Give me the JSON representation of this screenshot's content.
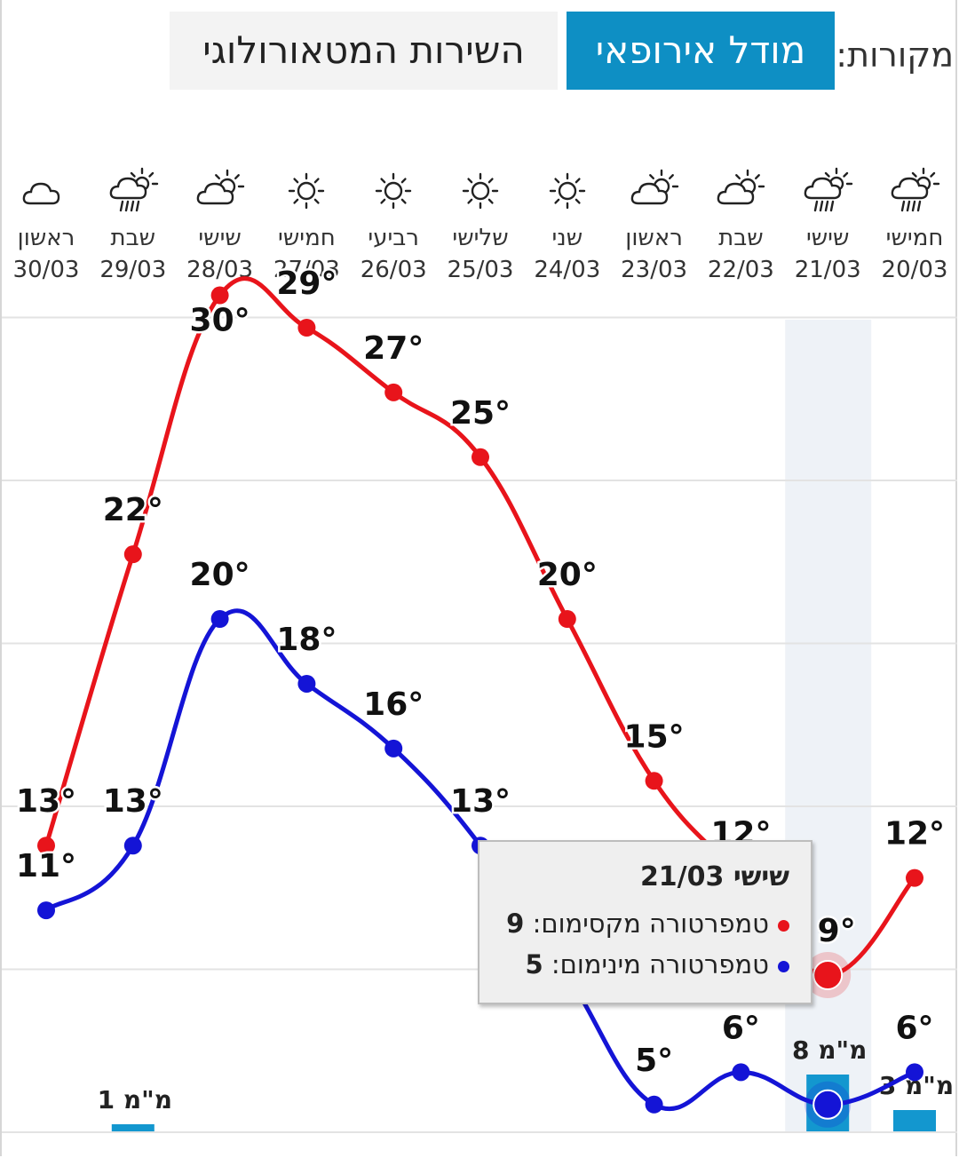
{
  "sources": {
    "label": "מקורות:",
    "european_model": "מודל אירופאי",
    "meteorological_service": "השירות המטאורולוגי"
  },
  "days": [
    {
      "name": "חמישי",
      "date": "20/03",
      "icon": "rain-sun-cloud-icon"
    },
    {
      "name": "שישי",
      "date": "21/03",
      "icon": "rain-sun-cloud-icon"
    },
    {
      "name": "שבת",
      "date": "22/03",
      "icon": "partly-cloudy-icon"
    },
    {
      "name": "ראשון",
      "date": "23/03",
      "icon": "partly-cloudy-icon"
    },
    {
      "name": "שני",
      "date": "24/03",
      "icon": "sun-icon"
    },
    {
      "name": "שלישי",
      "date": "25/03",
      "icon": "sun-icon"
    },
    {
      "name": "רביעי",
      "date": "26/03",
      "icon": "sun-icon"
    },
    {
      "name": "חמישי",
      "date": "27/03",
      "icon": "sun-icon"
    },
    {
      "name": "שישי",
      "date": "28/03",
      "icon": "partly-cloudy-icon"
    },
    {
      "name": "שבת",
      "date": "29/03",
      "icon": "rain-sun-cloud-icon"
    },
    {
      "name": "ראשון",
      "date": "30/03",
      "icon": "cloud-icon"
    }
  ],
  "chart_data": {
    "type": "line",
    "categories": [
      "20/03",
      "21/03",
      "22/03",
      "23/03",
      "24/03",
      "25/03",
      "26/03",
      "27/03",
      "28/03",
      "29/03",
      "30/03"
    ],
    "series": [
      {
        "name": "טמפרטורה מקסימום",
        "color": "#e8141b",
        "values": [
          12,
          9,
          12,
          15,
          20,
          25,
          27,
          29,
          30,
          22,
          13
        ]
      },
      {
        "name": "טמפרטורה מינימום",
        "color": "#1414d6",
        "values": [
          6,
          5,
          6,
          5,
          9,
          13,
          16,
          18,
          20,
          13,
          11
        ]
      }
    ],
    "value_labels": {
      "max": [
        "12°",
        "9°",
        "12°",
        "15°",
        "20°",
        "25°",
        "27°",
        "29°",
        "30°",
        "22°",
        "13°"
      ],
      "min": [
        "6°",
        "",
        "6°",
        "5°",
        "",
        "13°",
        "16°",
        "18°",
        "20°",
        "13°",
        "11°"
      ]
    },
    "precipitation": [
      {
        "date": "20/03",
        "mm": 3,
        "label": "3 מ\"מ"
      },
      {
        "date": "21/03",
        "mm": 8,
        "label": "8 מ\"מ"
      },
      {
        "date": "29/03",
        "mm": 1,
        "label": "1 מ\"מ"
      }
    ],
    "highlighted": "21/03",
    "ylim": [
      5,
      30
    ],
    "grid": true,
    "bar_color": "#1397cf",
    "highlight_color": "#eef2f7"
  },
  "tooltip": {
    "title": "שישי 21/03",
    "max_label": "טמפרטורה מקסימום: ",
    "max_value": "9",
    "min_label": "טמפרטורה מינימום: ",
    "min_value": "5"
  }
}
